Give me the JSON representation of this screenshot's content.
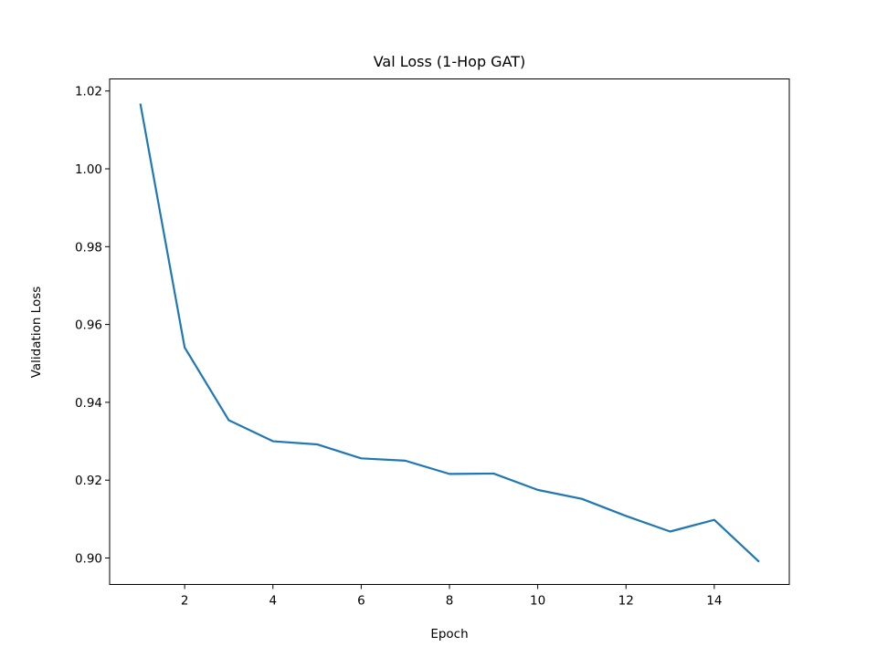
{
  "chart_data": {
    "type": "line",
    "title": "Val Loss (1-Hop GAT)",
    "xlabel": "Epoch",
    "ylabel": "Validation Loss",
    "xlim": [
      0.3,
      15.7
    ],
    "ylim": [
      0.8932,
      1.0231
    ],
    "xticks": [
      2,
      4,
      6,
      8,
      10,
      12,
      14
    ],
    "xtick_labels": [
      "2",
      "4",
      "6",
      "8",
      "10",
      "12",
      "14"
    ],
    "yticks": [
      0.9,
      0.92,
      0.94,
      0.96,
      0.98,
      1.0,
      1.02
    ],
    "ytick_labels": [
      "0.90",
      "0.92",
      "0.94",
      "0.96",
      "0.98",
      "1.00",
      "1.02"
    ],
    "grid": false,
    "series": [
      {
        "color": "#1f77b4",
        "x": [
          1,
          2,
          3,
          4,
          5,
          6,
          7,
          8,
          9,
          10,
          11,
          12,
          13,
          14,
          15
        ],
        "values": [
          1.0165,
          0.9541,
          0.9354,
          0.93,
          0.9292,
          0.9256,
          0.925,
          0.9216,
          0.9217,
          0.9175,
          0.9152,
          0.9108,
          0.9068,
          0.9098,
          0.8992
        ]
      }
    ]
  }
}
